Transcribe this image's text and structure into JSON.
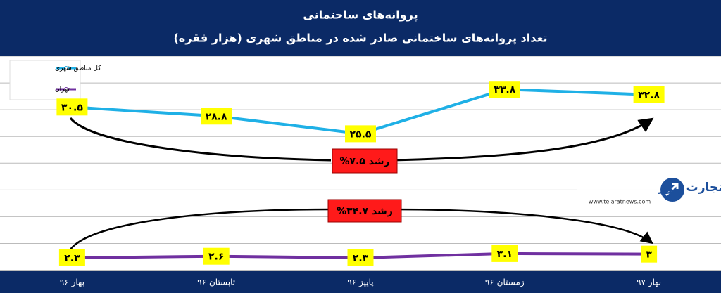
{
  "chart_data": {
    "type": "line",
    "title": "پروانه‌های ساختمانی",
    "subtitle": "تعداد پروانه‌های ساختمانی صادر شده در مناطق شهری (هزار فقره)",
    "categories": [
      "بهار ۹۶",
      "تابستان ۹۶",
      "پاییز ۹۶",
      "زمستان ۹۶",
      "بهار ۹۷"
    ],
    "series": [
      {
        "name": "کل مناطق شهری",
        "color": "#1fb0e6",
        "values": [
          30.5,
          28.8,
          25.5,
          33.8,
          32.8
        ],
        "value_labels": [
          "۳۰.۵",
          "۲۸.۸",
          "۲۵.۵",
          "۳۳.۸",
          "۳۲.۸"
        ]
      },
      {
        "name": "تهران",
        "color": "#7030a0",
        "values": [
          2.3,
          2.6,
          2.3,
          3.1,
          3
        ],
        "value_labels": [
          "۲.۳",
          "۲.۶",
          "۲.۳",
          "۳.۱",
          "۳"
        ]
      }
    ],
    "annotations": [
      "رشد ۷.۵%",
      "رشد ۳۴.۷%"
    ],
    "watermark": {
      "name": "تجارت نیوز",
      "url": "www.tejaratnews.com"
    },
    "ylim": [
      0,
      40
    ],
    "yticks": [
      0,
      5,
      10,
      15,
      20,
      25,
      30,
      35,
      40
    ],
    "grid": true
  }
}
